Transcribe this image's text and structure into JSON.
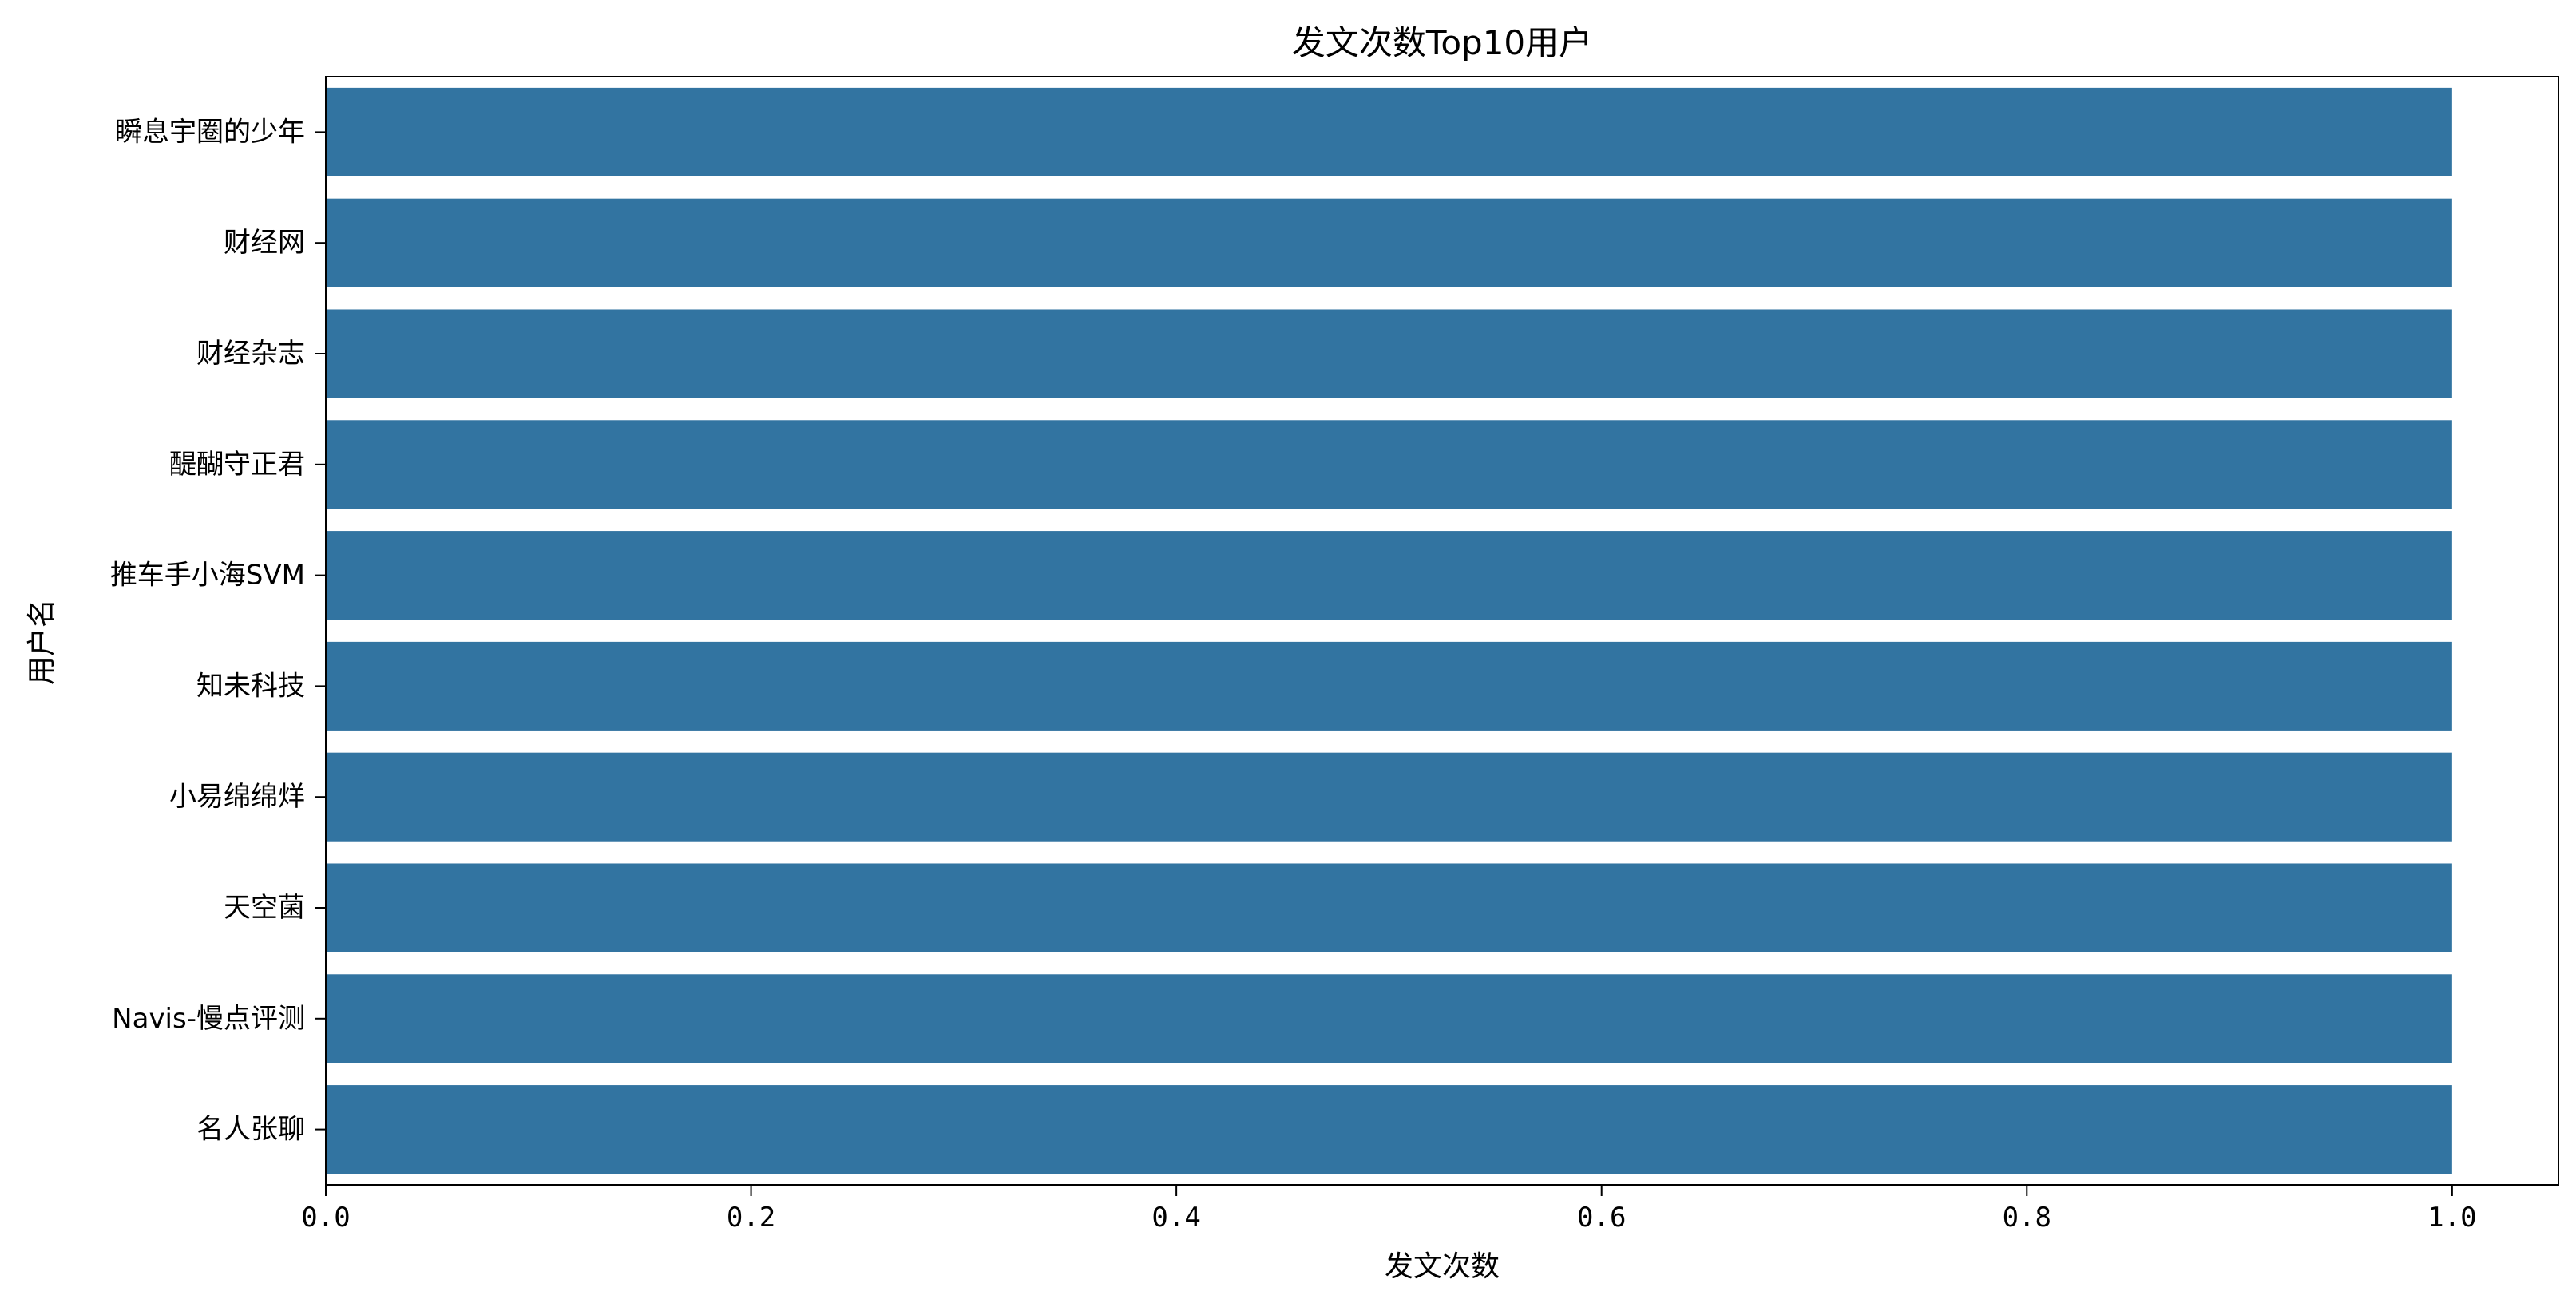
{
  "chart_data": {
    "type": "bar",
    "orientation": "horizontal",
    "title": "发文次数Top10用户",
    "xlabel": "发文次数",
    "ylabel": "用户名",
    "categories": [
      "瞬息宇圈的少年",
      "财经网",
      "财经杂志",
      "醍醐守正君",
      "推车手小海SVM",
      "知未科技",
      "小易绵绵烊",
      "天空菌",
      "Navis-慢点评测",
      "名人张聊"
    ],
    "values": [
      1,
      1,
      1,
      1,
      1,
      1,
      1,
      1,
      1,
      1
    ],
    "xlim": [
      0,
      1.05
    ],
    "xticks": [
      0.0,
      0.2,
      0.4,
      0.6,
      0.8,
      1.0
    ],
    "xtick_labels": [
      "0.0",
      "0.2",
      "0.4",
      "0.6",
      "0.8",
      "1.0"
    ],
    "bar_color": "#3274a1",
    "grid": false,
    "legend": "none"
  }
}
